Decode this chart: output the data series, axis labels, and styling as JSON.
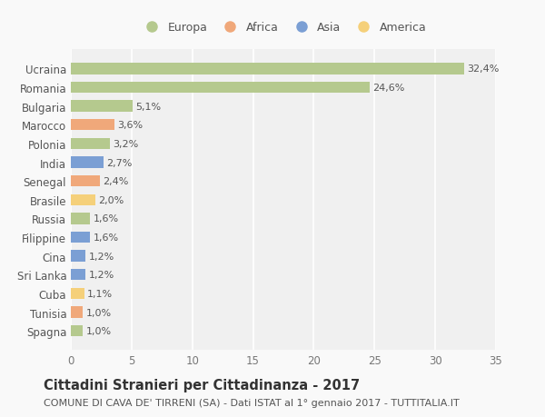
{
  "categories": [
    "Ucraina",
    "Romania",
    "Bulgaria",
    "Marocco",
    "Polonia",
    "India",
    "Senegal",
    "Brasile",
    "Russia",
    "Filippine",
    "Cina",
    "Sri Lanka",
    "Cuba",
    "Tunisia",
    "Spagna"
  ],
  "values": [
    32.4,
    24.6,
    5.1,
    3.6,
    3.2,
    2.7,
    2.4,
    2.0,
    1.6,
    1.6,
    1.2,
    1.2,
    1.1,
    1.0,
    1.0
  ],
  "labels": [
    "32,4%",
    "24,6%",
    "5,1%",
    "3,6%",
    "3,2%",
    "2,7%",
    "2,4%",
    "2,0%",
    "1,6%",
    "1,6%",
    "1,2%",
    "1,2%",
    "1,1%",
    "1,0%",
    "1,0%"
  ],
  "continents": [
    "Europa",
    "Europa",
    "Europa",
    "Africa",
    "Europa",
    "Asia",
    "Africa",
    "America",
    "Europa",
    "Asia",
    "Asia",
    "Asia",
    "America",
    "Africa",
    "Europa"
  ],
  "continent_colors": {
    "Europa": "#b5c98e",
    "Africa": "#f0a87a",
    "Asia": "#7b9fd4",
    "America": "#f5d07a"
  },
  "legend_order": [
    "Europa",
    "Africa",
    "Asia",
    "America"
  ],
  "title": "Cittadini Stranieri per Cittadinanza - 2017",
  "subtitle": "COMUNE DI CAVA DE' TIRRENI (SA) - Dati ISTAT al 1° gennaio 2017 - TUTTITALIA.IT",
  "xlim": [
    0,
    35
  ],
  "xticks": [
    0,
    5,
    10,
    15,
    20,
    25,
    30,
    35
  ],
  "background_color": "#f9f9f9",
  "plot_bg_color": "#f0f0f0",
  "grid_color": "#ffffff",
  "bar_height": 0.6,
  "title_fontsize": 10.5,
  "subtitle_fontsize": 8,
  "tick_fontsize": 8.5,
  "label_fontsize": 8,
  "legend_fontsize": 9
}
